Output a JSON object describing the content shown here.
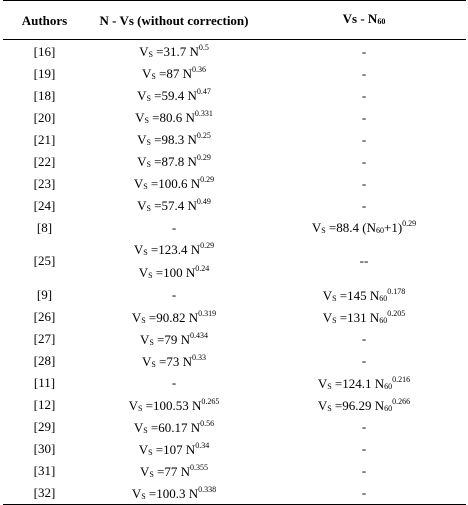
{
  "headers": {
    "col1": "Authors",
    "col2": "N - Vs (without correction)",
    "col3_main": "Vs - N",
    "col3_sub": "60"
  },
  "rows": [
    {
      "author": "[16]",
      "nvs": {
        "pre": "V",
        "sub": "S",
        "mid": " =31.7 N",
        "sup": "0.5",
        "post": ""
      },
      "vsn": {
        "text": "-"
      }
    },
    {
      "author": "[19]",
      "nvs": {
        "pre": "V",
        "sub": "S",
        "mid": " =87 N",
        "sup": "0.36",
        "post": ""
      },
      "vsn": {
        "text": "-"
      }
    },
    {
      "author": "[18]",
      "nvs": {
        "pre": "V",
        "sub": "S",
        "mid": " =59.4 N",
        "sup": "0.47",
        "post": ""
      },
      "vsn": {
        "text": "-"
      }
    },
    {
      "author": "[20]",
      "nvs": {
        "pre": "V",
        "sub": "S",
        "mid": " =80.6 N",
        "sup": "0.331",
        "post": ""
      },
      "vsn": {
        "text": "-"
      }
    },
    {
      "author": "[21]",
      "nvs": {
        "pre": "V",
        "sub": "S",
        "mid": " =98.3 N",
        "sup": "0.25",
        "post": ""
      },
      "vsn": {
        "text": "-"
      }
    },
    {
      "author": "[22]",
      "nvs": {
        "pre": "V",
        "sub": "S",
        "mid": " =87.8 N",
        "sup": "0.29",
        "post": ""
      },
      "vsn": {
        "text": "-"
      }
    },
    {
      "author": "[23]",
      "nvs": {
        "pre": "V",
        "sub": "S",
        "mid": " =100.6 N",
        "sup": "0.29",
        "post": ""
      },
      "vsn": {
        "text": "-"
      }
    },
    {
      "author": "[24]",
      "nvs": {
        "pre": "V",
        "sub": "S",
        "mid": " =57.4 N",
        "sup": "0.49",
        "post": ""
      },
      "vsn": {
        "text": "-"
      }
    },
    {
      "author": "[8]",
      "nvs": {
        "text": "-"
      },
      "vsn": {
        "pre": "V",
        "sub": "S",
        "mid": " =88.4 (N",
        "sub2": "60",
        "mid2": "+1)",
        "sup": "0.29"
      }
    },
    {
      "author": "[25]",
      "tall": true,
      "nvs_lines": [
        {
          "pre": "V",
          "sub": "S",
          "mid": " =123.4 N",
          "sup": "0.29"
        },
        {
          "pre": "V",
          "sub": "S",
          "mid": " =100 N",
          "sup": "0.24"
        }
      ],
      "vsn": {
        "text": "--"
      }
    },
    {
      "author": "[9]",
      "nvs": {
        "text": "-"
      },
      "vsn": {
        "pre": "V",
        "sub": "S",
        "mid": " =145 N",
        "sub2": "60",
        "sup": "0.178"
      }
    },
    {
      "author": "[26]",
      "nvs": {
        "pre": "V",
        "sub": "S",
        "mid": " =90.82 N",
        "sup": "0.319",
        "post": ""
      },
      "vsn": {
        "pre": "V",
        "sub": "S",
        "mid": " =131 N",
        "sub2": "60",
        "sup": "0.205"
      }
    },
    {
      "author": "[27]",
      "nvs": {
        "pre": "V",
        "sub": "S",
        "mid": " =79 N",
        "sup": "0.434",
        "post": ""
      },
      "vsn": {
        "text": "-"
      }
    },
    {
      "author": "[28]",
      "nvs": {
        "pre": "V",
        "sub": "S",
        "mid": " =73 N",
        "sup": "0.33",
        "post": ""
      },
      "vsn": {
        "text": "-"
      }
    },
    {
      "author": "[11]",
      "nvs": {
        "text": "-"
      },
      "vsn": {
        "pre": "V",
        "sub": "S",
        "mid": " =124.1 N",
        "sub2": "60",
        "sup": "0.216"
      }
    },
    {
      "author": "[12]",
      "nvs": {
        "pre": "V",
        "sub": "S",
        "mid": " =100.53 N",
        "sup": "0.265",
        "post": ""
      },
      "vsn": {
        "pre": "V",
        "sub": "S",
        "mid": " =96.29 N",
        "sub2": "60",
        "sup": "0.266"
      }
    },
    {
      "author": "[29]",
      "nvs": {
        "pre": "V",
        "sub": "S",
        "mid": " =60.17 N",
        "sup": "0.56",
        "post": ""
      },
      "vsn": {
        "text": "-"
      }
    },
    {
      "author": "[30]",
      "nvs": {
        "pre": "V",
        "sub": "S",
        "mid": " =107 N",
        "sup": "0.34",
        "post": ""
      },
      "vsn": {
        "text": "-"
      }
    },
    {
      "author": "[31]",
      "nvs": {
        "pre": "V",
        "sub": "S",
        "mid": " =77 N",
        "sup": "0.355",
        "post": ""
      },
      "vsn": {
        "text": "-"
      }
    },
    {
      "author": "[32]",
      "nvs": {
        "pre": "V",
        "sub": "S",
        "mid": " =100.3 N",
        "sup": "0.338",
        "post": ""
      },
      "vsn": {
        "text": "-"
      }
    }
  ]
}
